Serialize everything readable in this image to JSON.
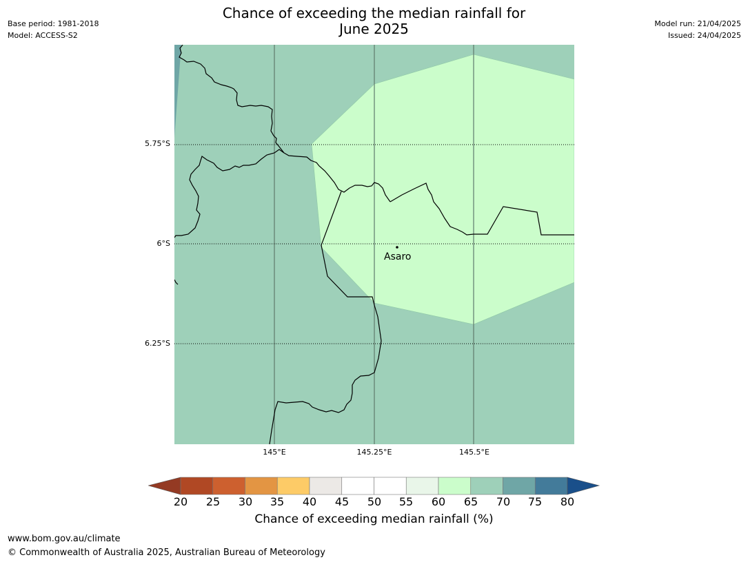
{
  "header": {
    "title_line1": "Chance of exceeding the median rainfall for",
    "title_line2": "June 2025",
    "base_period": "Base period: 1981-2018",
    "model": "Model: ACCESS-S2",
    "model_run": "Model run: 21/04/2025",
    "issued": "Issued: 24/04/2025"
  },
  "map": {
    "lat_labels": [
      "5.75°S",
      "6°S",
      "6.25°S"
    ],
    "lon_labels": [
      "145°E",
      "145.25°E",
      "145.5°E"
    ],
    "place": "Asaro",
    "zones": [
      {
        "class": "65-70",
        "color": "#9ed0b9"
      },
      {
        "class": "60-65",
        "color": "#cbfdcb"
      },
      {
        "class": "70-75",
        "color": "#6fa6a6"
      }
    ]
  },
  "colorbar": {
    "ticks": [
      "20",
      "25",
      "30",
      "35",
      "40",
      "45",
      "50",
      "55",
      "60",
      "65",
      "70",
      "75",
      "80"
    ],
    "colors": [
      "#943a23",
      "#b04824",
      "#cd602f",
      "#e39543",
      "#fdcb67",
      "#ece9e6",
      "#ffffff",
      "#ffffff",
      "#e9f6e9",
      "#cbfdcb",
      "#9ed0b9",
      "#6fa6a6",
      "#437b9a",
      "#1a4f8a"
    ],
    "label": "Chance of exceeding median rainfall (%)"
  },
  "footer": {
    "url": "www.bom.gov.au/climate",
    "copyright": "© Commonwealth of Australia 2025, Australian Bureau of Meteorology"
  }
}
